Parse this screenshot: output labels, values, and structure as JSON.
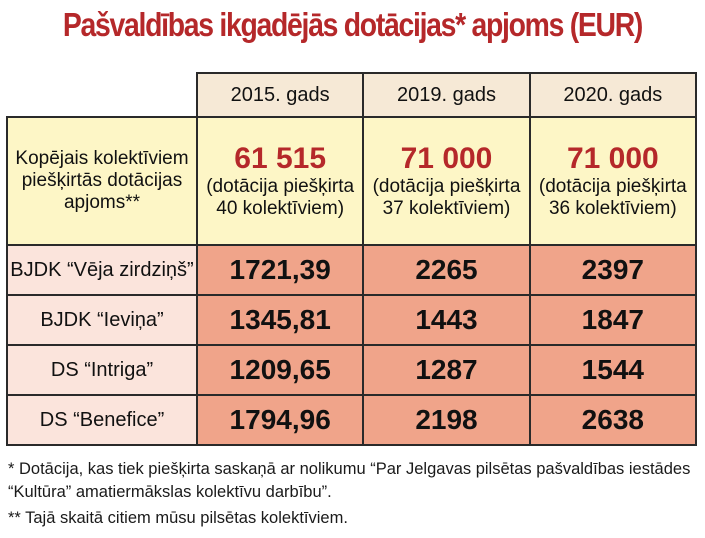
{
  "title": "Pašvaldības ikgadējās dotācijas* apjoms (EUR)",
  "chart_data": {
    "type": "table",
    "title": "Pašvaldības ikgadējās dotācijas* apjoms (EUR)",
    "columns": [
      "2015. gads",
      "2019. gads",
      "2020. gads"
    ],
    "total_row": {
      "label": "Kopējais kolektīviem piešķirtās dotācijas apjoms**",
      "cells": [
        {
          "value": "61 515",
          "note": "(dotācija piešķirta 40 kolektīviem)"
        },
        {
          "value": "71 000",
          "note": "(dotācija piešķirta 37 kolektīviem)"
        },
        {
          "value": "71 000",
          "note": "(dotācija piešķirta 36 kolektīviem)"
        }
      ]
    },
    "rows": [
      {
        "label": "BJDK “Vēja zirdziņš”",
        "values": [
          "1721,39",
          "2265",
          "2397"
        ]
      },
      {
        "label": "BJDK “Ieviņa”",
        "values": [
          "1345,81",
          "1443",
          "1847"
        ]
      },
      {
        "label": "DS “Intriga”",
        "values": [
          "1209,65",
          "1287",
          "1544"
        ]
      },
      {
        "label": "DS “Benefice”",
        "values": [
          "1794,96",
          "2198",
          "2638"
        ]
      }
    ]
  },
  "footnotes": {
    "line1": "* Dotācija, kas tiek piešķirta saskaņā ar nolikumu “Par Jelgavas pilsētas pašvaldības iestādes",
    "line2": "“Kultūra” amatiermākslas kolektīvu darbību”.",
    "line3": "** Tajā skaitā citiem mūsu pilsētas kolektīviem."
  },
  "colors": {
    "title": "#b5282a",
    "header_bg": "#f6e9d6",
    "total_bg": "#fdf6c6",
    "row_label_bg": "#fbe4dc",
    "row_value_bg": "#f0a48a"
  }
}
